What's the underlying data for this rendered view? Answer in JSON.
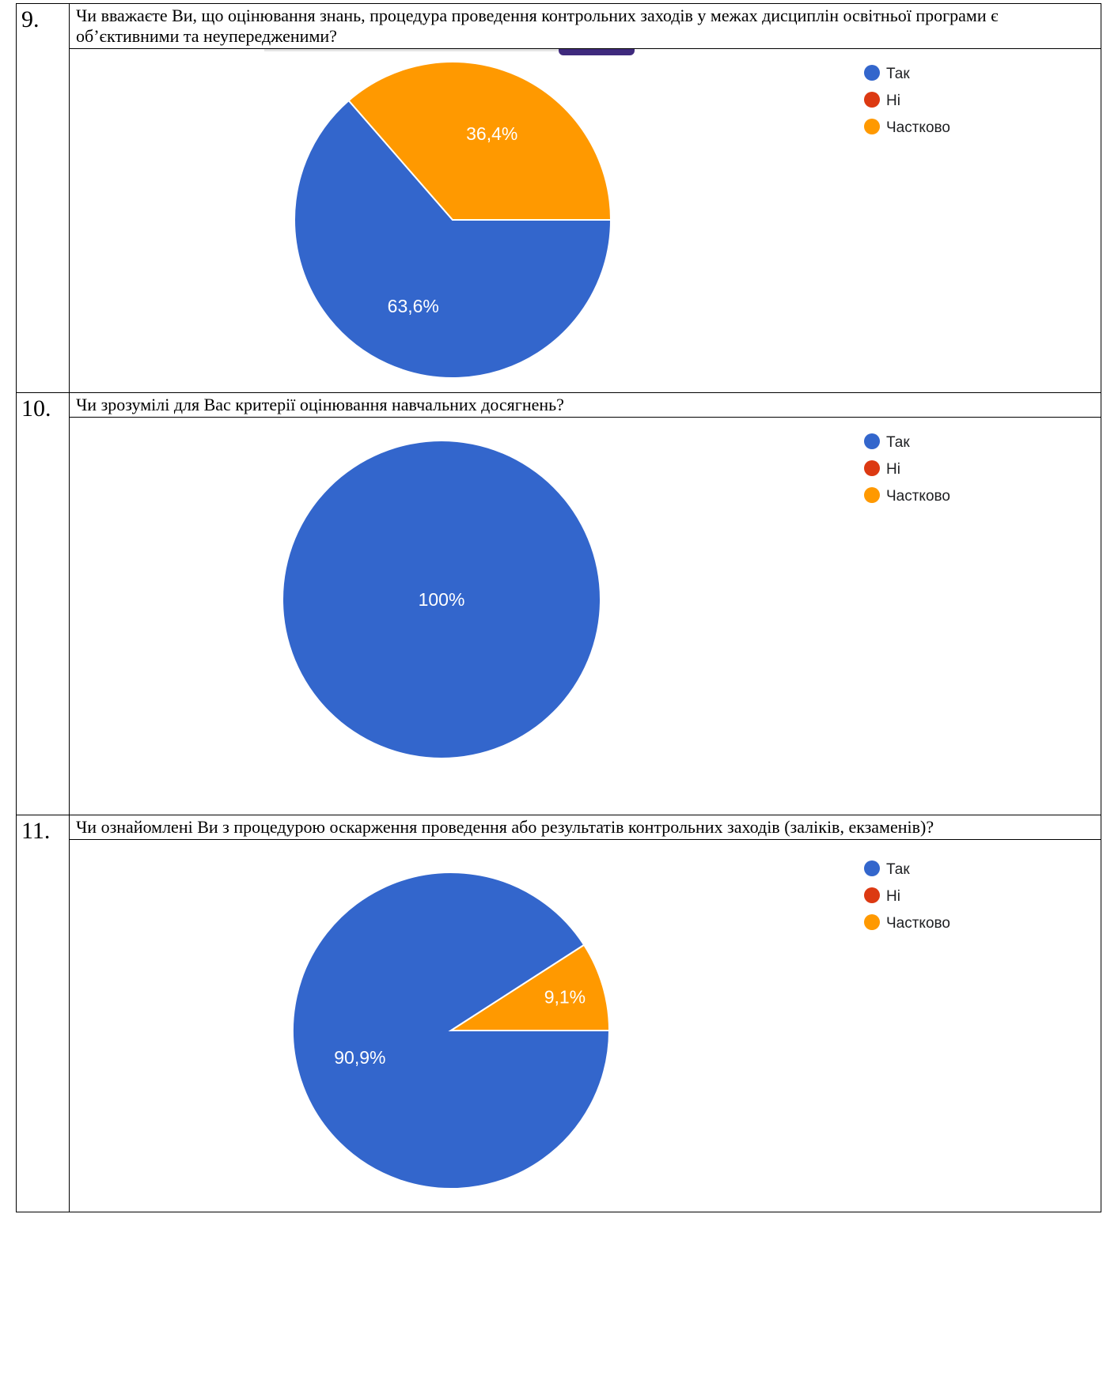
{
  "questions": [
    {
      "number": "9.",
      "text": "Чи вважаєте Ви, що оцінювання знань, процедура проведення контрольних заходів у межах дисциплін освітньої програми є об’єктивними та неупередженими?",
      "chart_data": {
        "type": "pie",
        "categories": [
          "Так",
          "Ні",
          "Частково"
        ],
        "values": [
          63.6,
          0,
          36.4
        ],
        "value_labels": [
          "63,6%",
          "",
          "36,4%"
        ],
        "colors": [
          "#3366cc",
          "#dc3912",
          "#ff9900"
        ],
        "legend_position": "top-right"
      }
    },
    {
      "number": "10.",
      "text": "Чи зрозумілі для Вас критерії оцінювання навчальних досягнень?",
      "chart_data": {
        "type": "pie",
        "categories": [
          "Так",
          "Ні",
          "Частково"
        ],
        "values": [
          100,
          0,
          0
        ],
        "value_labels": [
          "100%",
          "",
          ""
        ],
        "colors": [
          "#3366cc",
          "#dc3912",
          "#ff9900"
        ],
        "legend_position": "top-right"
      }
    },
    {
      "number": "11.",
      "text": "Чи ознайомлені Ви з процедурою оскарження проведення або результатів контрольних заходів (заліків, екзаменів)?",
      "chart_data": {
        "type": "pie",
        "categories": [
          "Так",
          "Ні",
          "Частково"
        ],
        "values": [
          90.9,
          0,
          9.1
        ],
        "value_labels": [
          "90,9%",
          "",
          "9,1%"
        ],
        "colors": [
          "#3366cc",
          "#dc3912",
          "#ff9900"
        ],
        "legend_position": "top-right"
      }
    }
  ]
}
